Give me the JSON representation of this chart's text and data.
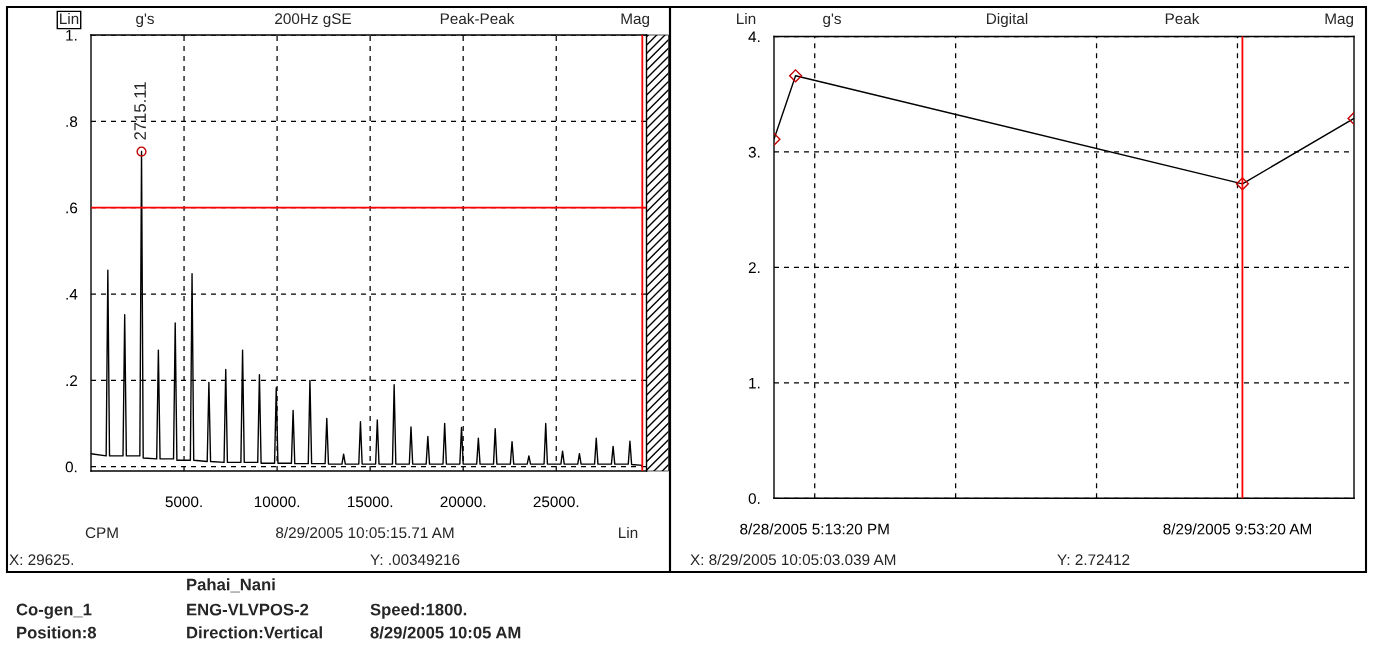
{
  "chart_data": [
    {
      "type": "line",
      "xlim": [
        0,
        29850
      ],
      "ylim": [
        -0.01,
        1.0
      ],
      "xticks": [
        {
          "value": 5000,
          "label": "5000."
        },
        {
          "value": 10000,
          "label": "10000."
        },
        {
          "value": 15000,
          "label": "15000."
        },
        {
          "value": 20000,
          "label": "20000."
        },
        {
          "value": 25000,
          "label": "25000."
        }
      ],
      "yticks": [
        {
          "value": 0,
          "label": "0."
        },
        {
          "value": 0.2,
          "label": ".2"
        },
        {
          "value": 0.4,
          "label": ".4"
        },
        {
          "value": 0.6,
          "label": ".6"
        },
        {
          "value": 0.8,
          "label": ".8"
        },
        {
          "value": 1.0,
          "label": "1."
        }
      ],
      "grid": true,
      "series": [
        {
          "color": "#000000",
          "marker": "none",
          "x": [
            0,
            815,
            905,
            995,
            1720,
            1810,
            1900,
            2625,
            2715.11,
            2805,
            3530,
            3620,
            3710,
            4435,
            4525,
            4615,
            5340,
            5430,
            5520,
            6245,
            6335,
            6425,
            7150,
            7240,
            7330,
            8055,
            8145,
            8235,
            8960,
            9050,
            9140,
            9865,
            9955,
            10045,
            10770,
            10860,
            10950,
            11675,
            11765,
            11855,
            12580,
            12670,
            12760,
            13485,
            13575,
            13665,
            14390,
            14480,
            14570,
            15295,
            15385,
            15475,
            16200,
            16290,
            16380,
            17105,
            17195,
            17285,
            18010,
            18100,
            18190,
            18915,
            19005,
            19095,
            19820,
            19910,
            20000,
            20725,
            20815,
            20905,
            21630,
            21720,
            21810,
            22535,
            22625,
            22715,
            23440,
            23530,
            23620,
            24345,
            24435,
            24525,
            25250,
            25340,
            25430,
            26155,
            26245,
            26335,
            27060,
            27150,
            27240,
            27965,
            28055,
            28145,
            28870,
            28960,
            29050,
            29625
          ],
          "values": [
            0.03,
            0.025,
            0.455,
            0.025,
            0.025,
            0.352,
            0.025,
            0.025,
            0.73,
            0.02,
            0.018,
            0.27,
            0.018,
            0.018,
            0.333,
            0.015,
            0.015,
            0.447,
            0.015,
            0.012,
            0.195,
            0.012,
            0.01,
            0.225,
            0.01,
            0.01,
            0.27,
            0.01,
            0.01,
            0.213,
            0.008,
            0.008,
            0.183,
            0.008,
            0.008,
            0.13,
            0.007,
            0.007,
            0.2,
            0.007,
            0.007,
            0.112,
            0.006,
            0.006,
            0.029,
            0.006,
            0.006,
            0.104,
            0.006,
            0.006,
            0.108,
            0.006,
            0.006,
            0.19,
            0.006,
            0.006,
            0.092,
            0.006,
            0.006,
            0.07,
            0.006,
            0.006,
            0.1,
            0.006,
            0.006,
            0.091,
            0.006,
            0.006,
            0.066,
            0.006,
            0.006,
            0.088,
            0.006,
            0.006,
            0.058,
            0.006,
            0.006,
            0.025,
            0.006,
            0.006,
            0.1,
            0.006,
            0.006,
            0.036,
            0.006,
            0.006,
            0.03,
            0.006,
            0.006,
            0.066,
            0.006,
            0.006,
            0.047,
            0.006,
            0.006,
            0.059,
            0.005,
            0.003
          ]
        },
        {
          "type": "scatter",
          "color": "#c00000",
          "marker": "circle",
          "x": [
            2715.11
          ],
          "values": [
            0.73
          ]
        }
      ],
      "ref_lines": [
        {
          "axis": "y",
          "value": 0.6,
          "color": "#ff0000"
        },
        {
          "axis": "x",
          "value": 29625,
          "color": "#ff0000"
        }
      ],
      "annotations": [
        {
          "text": "2715.11",
          "x": 2715.11,
          "y": 0.73
        },
        "Lin",
        "g's",
        "200Hz gSE",
        "Peak-Peak",
        "Mag",
        "CPM",
        "8/29/2005 10:05:15.71 AM",
        "Lin",
        "X: 29625.",
        "Y: .00349216",
        "Pahai_Nani",
        "Co-gen_1",
        "ENG-VLVPOS-2",
        "Speed:1800.",
        "Position:8",
        "Direction:Vertical",
        "8/29/2005 10:05 AM"
      ]
    },
    {
      "type": "line",
      "xlim": [
        "2005-08-28T15:37",
        "2005-08-29T14:29"
      ],
      "ylim": [
        0,
        4
      ],
      "xticks": [
        {
          "value": "2005-08-28T17:13:20",
          "label": "8/28/2005 5:13:20 PM"
        },
        {
          "value": "2005-08-28T22:46:40",
          "label": null
        },
        {
          "value": "2005-08-29T04:20:00",
          "label": null
        },
        {
          "value": "2005-08-29T09:53:20",
          "label": "8/29/2005 9:53:20 AM"
        }
      ],
      "yticks": [
        {
          "value": 0,
          "label": "0."
        },
        {
          "value": 1,
          "label": "1."
        },
        {
          "value": 2,
          "label": "2."
        },
        {
          "value": 3,
          "label": "3."
        },
        {
          "value": 4,
          "label": "4."
        }
      ],
      "grid": true,
      "series": [
        {
          "color": "#000000",
          "marker": "diamond",
          "x": [
            "2005-08-28T15:37",
            "2005-08-28T16:28",
            "2005-08-29T10:05:03",
            "2005-08-29T14:29"
          ],
          "values": [
            3.11,
            3.66,
            2.72412,
            3.29
          ]
        }
      ],
      "ref_lines": [
        {
          "axis": "x",
          "value": "2005-08-29T10:05:03",
          "color": "#ff0000"
        }
      ],
      "annotations": [
        "Lin",
        "g's",
        "Digital",
        "Peak",
        "Mag",
        "X: 8/29/2005 10:05:03.039 AM",
        "Y: 2.72412"
      ]
    }
  ]
}
